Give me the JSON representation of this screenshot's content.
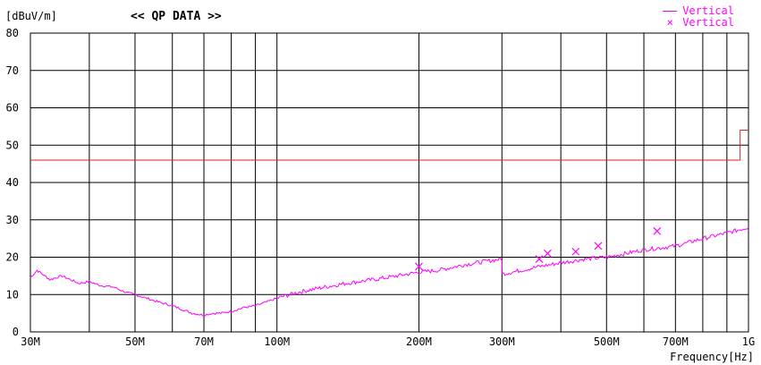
{
  "chart_data": {
    "type": "line",
    "title": "<< QP DATA >>",
    "ylabel": "[dBuV/m]",
    "xlabel": "Frequency[Hz]",
    "x_scale": "log",
    "xlim": [
      30,
      1000
    ],
    "ylim": [
      0,
      80
    ],
    "grid": true,
    "legend_position": "top-right",
    "x_ticks": [
      {
        "value": 30,
        "label": "30M"
      },
      {
        "value": 40,
        "label": ""
      },
      {
        "value": 50,
        "label": "50M"
      },
      {
        "value": 60,
        "label": ""
      },
      {
        "value": 70,
        "label": "70M"
      },
      {
        "value": 80,
        "label": ""
      },
      {
        "value": 90,
        "label": ""
      },
      {
        "value": 100,
        "label": "100M"
      },
      {
        "value": 200,
        "label": "200M"
      },
      {
        "value": 300,
        "label": "300M"
      },
      {
        "value": 400,
        "label": ""
      },
      {
        "value": 500,
        "label": "500M"
      },
      {
        "value": 600,
        "label": ""
      },
      {
        "value": 700,
        "label": "700M"
      },
      {
        "value": 800,
        "label": ""
      },
      {
        "value": 900,
        "label": ""
      },
      {
        "value": 1000,
        "label": "1G"
      }
    ],
    "y_ticks": [
      0,
      10,
      20,
      30,
      40,
      50,
      60,
      70,
      80
    ],
    "limit_line": {
      "color": "#dd2222",
      "points": [
        [
          30,
          46
        ],
        [
          960,
          46
        ],
        [
          960,
          54
        ],
        [
          1000,
          54
        ]
      ]
    },
    "series": [
      {
        "name": "Vertical",
        "kind": "line",
        "color": "#ff00ff",
        "x": [
          30,
          31,
          33,
          35,
          38,
          40,
          42,
          45,
          48,
          50,
          53,
          56,
          60,
          63,
          66,
          70,
          73,
          76,
          80,
          85,
          90,
          95,
          100,
          110,
          120,
          140,
          160,
          180,
          200,
          220,
          250,
          280,
          300,
          300.5,
          330,
          360,
          400,
          450,
          500,
          550,
          600,
          650,
          700,
          800,
          900,
          1000
        ],
        "y": [
          14.5,
          16.5,
          14.0,
          15.0,
          13.0,
          13.5,
          12.5,
          12.0,
          10.5,
          10.0,
          9.0,
          8.0,
          7.0,
          6.0,
          5.0,
          4.5,
          5.0,
          5.0,
          5.5,
          6.5,
          7.0,
          8.0,
          9.0,
          10.5,
          11.5,
          13.0,
          14.0,
          15.0,
          16.0,
          16.5,
          18.0,
          19.0,
          19.5,
          15.5,
          16.5,
          17.5,
          18.5,
          19.5,
          20.0,
          21.0,
          22.0,
          22.5,
          23.0,
          25.0,
          26.5,
          28.0
        ]
      },
      {
        "name": "Vertical",
        "kind": "scatter",
        "marker": "x",
        "color": "#ff00ff",
        "x": [
          200,
          360,
          375,
          430,
          480,
          640
        ],
        "y": [
          17.5,
          19.5,
          21.0,
          21.5,
          23.0,
          27.0
        ]
      }
    ]
  }
}
